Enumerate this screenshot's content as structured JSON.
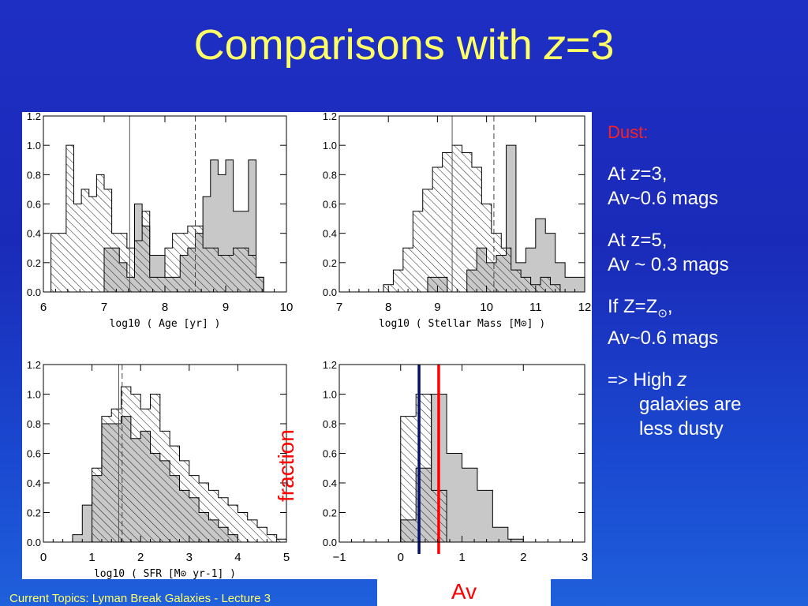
{
  "title": {
    "prefix": "Comparisons with ",
    "z": "z",
    "suffix": "=3"
  },
  "footer": "Current Topics:  Lyman Break Galaxies - Lecture 3",
  "overlay": {
    "fraction_label": "fraction",
    "av_label": "Av"
  },
  "notes": {
    "dust": "Dust:",
    "at_z3_prefix": "At ",
    "at_z3_z": "z",
    "at_z3_suffix": "=3,",
    "av_z3": "Av~0.6 mags",
    "at_z5": "At z=5,",
    "av_z5": "Av ~ 0.3 mags",
    "solar_prefix": "If Z=Z",
    "solar_symbol": "⊙",
    "solar_suffix": ",",
    "av_solar": "Av~0.6 mags",
    "arrow": "=>",
    "high": " High ",
    "high_z": "z",
    "galaxies": "galaxies are",
    "dusty": "less dusty"
  },
  "colors": {
    "title": "#ffff66",
    "footer": "#ffff66",
    "text": "#ffffff",
    "dust": "#ff2020",
    "filled": "#c8c8c8",
    "ink": "#000000",
    "av_blue": "#00106e",
    "av_red": "#ff0000"
  },
  "chart_data": [
    {
      "type": "bar",
      "xlabel": "log10 ( Age [yr] )",
      "xlim": [
        6,
        10
      ],
      "ylim": [
        0,
        1.2
      ],
      "xticks": [
        "6",
        "7",
        "8",
        "9",
        "10"
      ],
      "yticks": [
        "0.0",
        "0.2",
        "0.4",
        "0.6",
        "0.8",
        "1.0",
        "1.2"
      ],
      "bin_width": 0.125,
      "series": [
        {
          "style": "hatched",
          "x0": 6.125,
          "values": [
            0.4,
            0.4,
            1.0,
            0.6,
            0.7,
            0.65,
            0.8,
            0.7,
            0.4,
            0.4,
            0.3,
            0.35,
            0.55,
            0.1,
            0.1,
            0.3,
            0.4,
            0.4,
            0.45,
            0.45,
            0.3,
            0.3,
            0.25,
            0.25,
            0.3,
            0.3,
            0.25,
            0.1,
            0.0
          ]
        },
        {
          "style": "filled",
          "x0": 7.0,
          "values": [
            0.3,
            0.3,
            0.2,
            0.1,
            0.6,
            0.45,
            0.25,
            0.25,
            0.1,
            0.1,
            0.25,
            0.3,
            0.4,
            0.65,
            0.9,
            0.8,
            0.9,
            0.55,
            0.55,
            0.9,
            0.1
          ]
        }
      ],
      "vlines": [
        {
          "x": 7.42,
          "style": "solid"
        },
        {
          "x": 8.5,
          "style": "dashed"
        }
      ]
    },
    {
      "type": "bar",
      "xlabel": "log10 ( Stellar Mass [M⊙] )",
      "xlim": [
        7,
        12
      ],
      "ylim": [
        0,
        1.2
      ],
      "xticks": [
        "7",
        "8",
        "9",
        "10",
        "11",
        "12"
      ],
      "yticks": [
        "0.0",
        "0.2",
        "0.4",
        "0.6",
        "0.8",
        "1.0",
        "1.2"
      ],
      "bin_width": 0.2,
      "series": [
        {
          "style": "hatched",
          "x0": 7.9,
          "values": [
            0.05,
            0.15,
            0.3,
            0.55,
            0.7,
            0.85,
            0.95,
            1.0,
            0.95,
            0.85,
            0.6,
            0.4,
            0.3,
            0.15,
            0.1,
            0.05,
            0.1,
            0.05
          ]
        },
        {
          "style": "filled",
          "x0": 8.8,
          "values": [
            0.1,
            0.1,
            0.0,
            0.0,
            0.15,
            0.3,
            0.2,
            0.25,
            1.0,
            0.2,
            0.3,
            0.5,
            0.4,
            0.2,
            0.1,
            0.1
          ]
        }
      ],
      "vlines": [
        {
          "x": 9.3,
          "style": "solid"
        },
        {
          "x": 10.15,
          "style": "dashed"
        }
      ]
    },
    {
      "type": "bar",
      "xlabel": "log10 ( SFR [M⊙ yr-1] )",
      "xlim": [
        0,
        5
      ],
      "ylim": [
        0,
        1.2
      ],
      "xticks": [
        "0",
        "1",
        "2",
        "3",
        "4",
        "5"
      ],
      "yticks": [
        "0.0",
        "0.2",
        "0.4",
        "0.6",
        "0.8",
        "1.0",
        "1.2"
      ],
      "bin_width": 0.2,
      "series": [
        {
          "style": "hatched",
          "x0": 1.0,
          "values": [
            0.5,
            0.85,
            0.9,
            1.05,
            1.0,
            0.9,
            1.0,
            0.75,
            0.65,
            0.55,
            0.45,
            0.4,
            0.35,
            0.3,
            0.25,
            0.2,
            0.15,
            0.1,
            0.05,
            0.02
          ]
        },
        {
          "style": "filled",
          "x0": 0.6,
          "values": [
            0.05,
            0.25,
            0.45,
            0.8,
            0.8,
            0.85,
            0.7,
            0.75,
            0.6,
            0.55,
            0.45,
            0.35,
            0.3,
            0.2,
            0.15,
            0.1,
            0.05
          ]
        }
      ],
      "vlines": [
        {
          "x": 1.55,
          "style": "solid"
        },
        {
          "x": 1.62,
          "style": "dashed"
        }
      ]
    },
    {
      "type": "bar",
      "xlabel": "",
      "xlim": [
        -1,
        3
      ],
      "ylim": [
        0,
        1.2
      ],
      "xticks": [
        "−1",
        "0",
        "1",
        "2",
        "3"
      ],
      "yticks": [
        "0.0",
        "0.2",
        "0.4",
        "0.6",
        "0.8",
        "1.0",
        "1.2"
      ],
      "bin_width": 0.25,
      "series": [
        {
          "style": "hatched",
          "x0": 0.0,
          "values": [
            0.85,
            1.0,
            0.35,
            0.0
          ]
        },
        {
          "style": "filled",
          "x0": 0.0,
          "values": [
            0.15,
            0.5,
            1.0,
            0.6,
            0.5,
            0.35,
            0.1,
            0.02
          ]
        }
      ],
      "vlines": [
        {
          "x": 0.3,
          "style": "blue"
        },
        {
          "x": 0.62,
          "style": "red"
        }
      ]
    }
  ]
}
